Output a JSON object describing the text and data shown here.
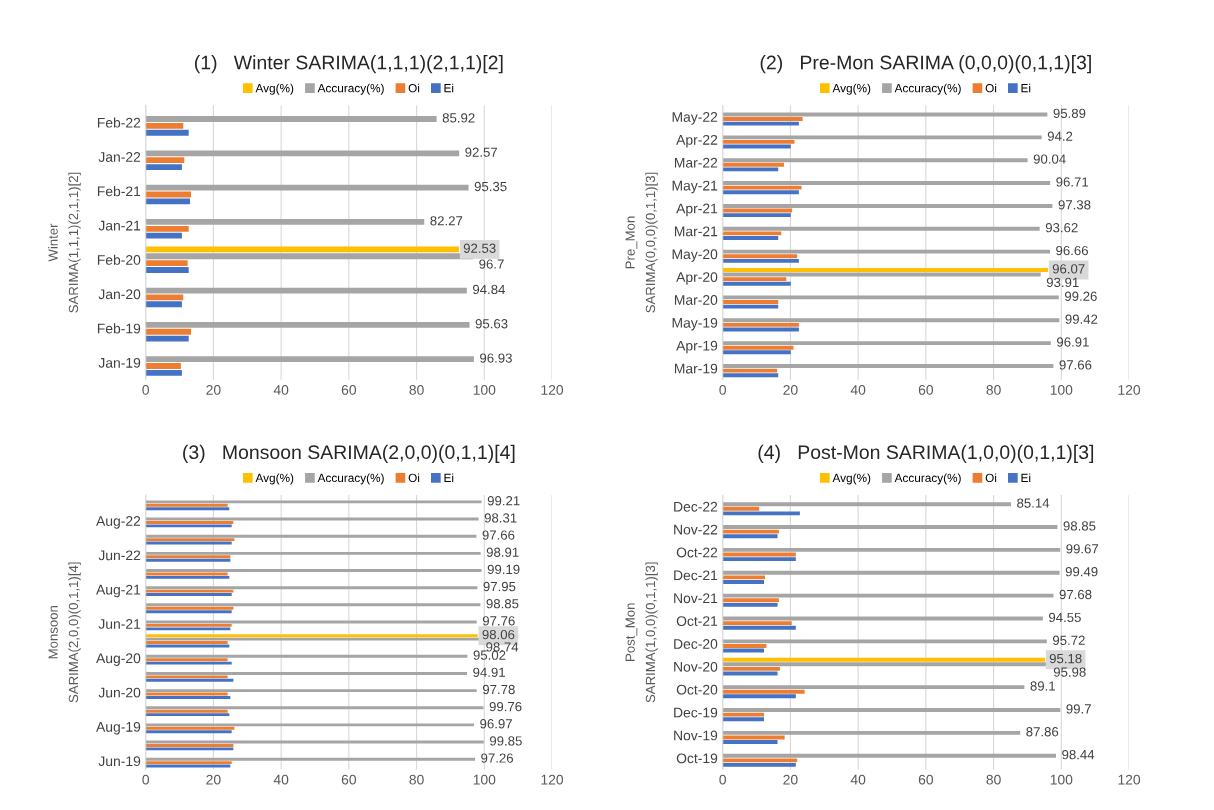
{
  "chart_data": [
    {
      "type": "bar",
      "orientation": "horizontal",
      "title": "(1)   Winter SARIMA(1,1,1)(2,1,1)[2]",
      "annotations": [
        "Winter",
        "SARIMA(1,1,1)(2,1,1)[2]"
      ],
      "categories": [
        "Feb-22",
        "Jan-22",
        "Feb-21",
        "Jan-21",
        "Feb-20",
        "Jan-20",
        "Feb-19",
        "Jan-19"
      ],
      "series": [
        {
          "name": "Avg(%)",
          "color": "#ffc000",
          "values": [
            null,
            null,
            null,
            null,
            92.53,
            null,
            null,
            null
          ],
          "value_labels": [
            null,
            null,
            null,
            null,
            "92.53",
            null,
            null,
            null
          ]
        },
        {
          "name": "Accuracy(%)",
          "color": "#a5a5a5",
          "values": [
            85.92,
            92.57,
            95.35,
            82.27,
            96.7,
            94.84,
            95.63,
            96.93
          ],
          "value_labels": [
            "85.92",
            "92.57",
            "95.35",
            "82.27",
            "96.7",
            "94.84",
            "95.63",
            "96.93"
          ]
        },
        {
          "name": "Oi",
          "color": "#ed7d31",
          "values": [
            11.1,
            11.4,
            13.4,
            12.7,
            12.4,
            11.1,
            13.4,
            10.4
          ]
        },
        {
          "name": "Ei",
          "color": "#4472c4",
          "values": [
            12.7,
            10.7,
            13.1,
            10.7,
            12.7,
            10.7,
            12.7,
            10.7
          ]
        }
      ],
      "xlim": [
        0,
        120
      ],
      "xticks": [
        0,
        20,
        40,
        60,
        80,
        100,
        120
      ],
      "grid": "x",
      "legend": "top"
    },
    {
      "type": "bar",
      "orientation": "horizontal",
      "title": "(2)   Pre-Mon SARIMA (0,0,0)(0,1,1)[3]",
      "annotations": [
        "Pre_Mon",
        "SARIMA(0,0,0)(0,1,1)[3]"
      ],
      "categories": [
        "May-22",
        "Apr-22",
        "Mar-22",
        "May-21",
        "Apr-21",
        "Mar-21",
        "May-20",
        "Apr-20",
        "Mar-20",
        "May-19",
        "Apr-19",
        "Mar-19"
      ],
      "series": [
        {
          "name": "Avg(%)",
          "color": "#ffc000",
          "values": [
            null,
            null,
            null,
            null,
            null,
            null,
            null,
            96.07,
            null,
            null,
            null,
            null
          ],
          "value_labels": [
            null,
            null,
            null,
            null,
            null,
            null,
            null,
            "96.07",
            null,
            null,
            null,
            null
          ]
        },
        {
          "name": "Accuracy(%)",
          "color": "#a5a5a5",
          "values": [
            95.89,
            94.2,
            90.04,
            96.71,
            97.38,
            93.62,
            96.66,
            93.91,
            99.26,
            99.42,
            96.91,
            97.66
          ],
          "value_labels": [
            "95.89",
            "94.2",
            "90.04",
            "96.71",
            "97.38",
            "93.62",
            "96.66",
            "93.91",
            "99.26",
            "99.42",
            "96.91",
            "97.66"
          ]
        },
        {
          "name": "Oi",
          "color": "#ed7d31",
          "values": [
            23.6,
            21.2,
            18.1,
            23.3,
            20.5,
            17.3,
            22.0,
            18.8,
            16.4,
            22.5,
            20.9,
            16.1
          ]
        },
        {
          "name": "Ei",
          "color": "#4472c4",
          "values": [
            22.5,
            20.1,
            16.4,
            22.5,
            20.1,
            16.4,
            22.5,
            20.1,
            16.4,
            22.5,
            20.1,
            16.4
          ]
        }
      ],
      "xlim": [
        0,
        120
      ],
      "xticks": [
        0,
        20,
        40,
        60,
        80,
        100,
        120
      ],
      "grid": "x",
      "legend": "top"
    },
    {
      "type": "bar",
      "orientation": "horizontal",
      "title": "(3)   Monsoon SARIMA(2,0,0)(0,1,1)[4]",
      "annotations": [
        "Monsoon",
        "SARIMA(2,0,0)(0,1,1)[4]"
      ],
      "categories": [
        null,
        "Aug-22",
        null,
        "Jun-22",
        null,
        "Aug-21",
        null,
        "Jun-21",
        null,
        "Aug-20",
        null,
        "Jun-20",
        null,
        "Aug-19",
        null,
        "Jun-19"
      ],
      "series": [
        {
          "name": "Avg(%)",
          "color": "#ffc000",
          "values": [
            null,
            null,
            null,
            null,
            null,
            null,
            null,
            null,
            98.06,
            null,
            null,
            null,
            null,
            null,
            null,
            null
          ],
          "value_labels": [
            null,
            null,
            null,
            null,
            null,
            null,
            null,
            null,
            "98.06",
            null,
            null,
            null,
            null,
            null,
            null,
            null
          ]
        },
        {
          "name": "Accuracy(%)",
          "color": "#a5a5a5",
          "values": [
            99.21,
            98.31,
            97.66,
            98.91,
            99.19,
            97.95,
            98.85,
            97.76,
            98.74,
            95.02,
            94.91,
            97.78,
            99.76,
            96.97,
            99.85,
            97.26
          ],
          "value_labels": [
            "99.21",
            "98.31",
            "97.66",
            "98.91",
            "99.19",
            "97.95",
            "98.85",
            "97.76",
            "98.74",
            "95.02",
            "94.91",
            "97.78",
            "99.76",
            "96.97",
            "99.85",
            "97.26"
          ]
        },
        {
          "name": "Oi",
          "color": "#ed7d31",
          "values": [
            24.2,
            25.9,
            26.2,
            25.0,
            24.2,
            25.9,
            25.9,
            25.4,
            24.2,
            24.2,
            24.2,
            24.2,
            24.2,
            26.2,
            25.9,
            25.4
          ]
        },
        {
          "name": "Ei",
          "color": "#4472c4",
          "values": [
            24.7,
            25.4,
            25.4,
            25.0,
            24.7,
            25.4,
            25.4,
            25.0,
            24.7,
            25.4,
            25.9,
            25.0,
            24.7,
            25.4,
            25.9,
            25.0
          ]
        }
      ],
      "xlim": [
        0,
        120
      ],
      "xticks": [
        0,
        20,
        40,
        60,
        80,
        100,
        120
      ],
      "grid": "x",
      "legend": "top"
    },
    {
      "type": "bar",
      "orientation": "horizontal",
      "title": "(4)   Post-Mon SARIMA(1,0,0)(0,1,1)[3]",
      "annotations": [
        "Post_Mon",
        "SARIMA(1,0,0)(0,1,1)[3]"
      ],
      "categories": [
        "Dec-22",
        "Nov-22",
        "Oct-22",
        "Dec-21",
        "Nov-21",
        "Oct-21",
        "Dec-20",
        "Nov-20",
        "Oct-20",
        "Dec-19",
        "Nov-19",
        "Oct-19"
      ],
      "series": [
        {
          "name": "Avg(%)",
          "color": "#ffc000",
          "values": [
            null,
            null,
            null,
            null,
            null,
            null,
            null,
            95.18,
            null,
            null,
            null,
            null
          ],
          "value_labels": [
            null,
            null,
            null,
            null,
            null,
            null,
            null,
            "95.18",
            null,
            null,
            null,
            null
          ]
        },
        {
          "name": "Accuracy(%)",
          "color": "#a5a5a5",
          "values": [
            85.14,
            98.85,
            99.67,
            99.49,
            97.68,
            94.55,
            95.72,
            95.98,
            89.1,
            99.7,
            87.86,
            98.44
          ],
          "value_labels": [
            "85.14",
            "98.85",
            "99.67",
            "99.49",
            "97.68",
            "94.55",
            "95.72",
            "95.98",
            "89.1",
            "99.7",
            "87.86",
            "98.44"
          ]
        },
        {
          "name": "Oi",
          "color": "#ed7d31",
          "values": [
            10.8,
            16.6,
            21.6,
            12.5,
            16.6,
            20.4,
            12.9,
            16.9,
            24.2,
            12.2,
            18.3,
            22.0
          ]
        },
        {
          "name": "Ei",
          "color": "#4472c4",
          "values": [
            22.8,
            16.2,
            21.6,
            12.2,
            16.2,
            21.6,
            12.2,
            16.2,
            21.6,
            12.2,
            16.2,
            21.6
          ]
        }
      ],
      "xlim": [
        0,
        120
      ],
      "xticks": [
        0,
        20,
        40,
        60,
        80,
        100,
        120
      ],
      "grid": "x",
      "legend": "top"
    }
  ]
}
